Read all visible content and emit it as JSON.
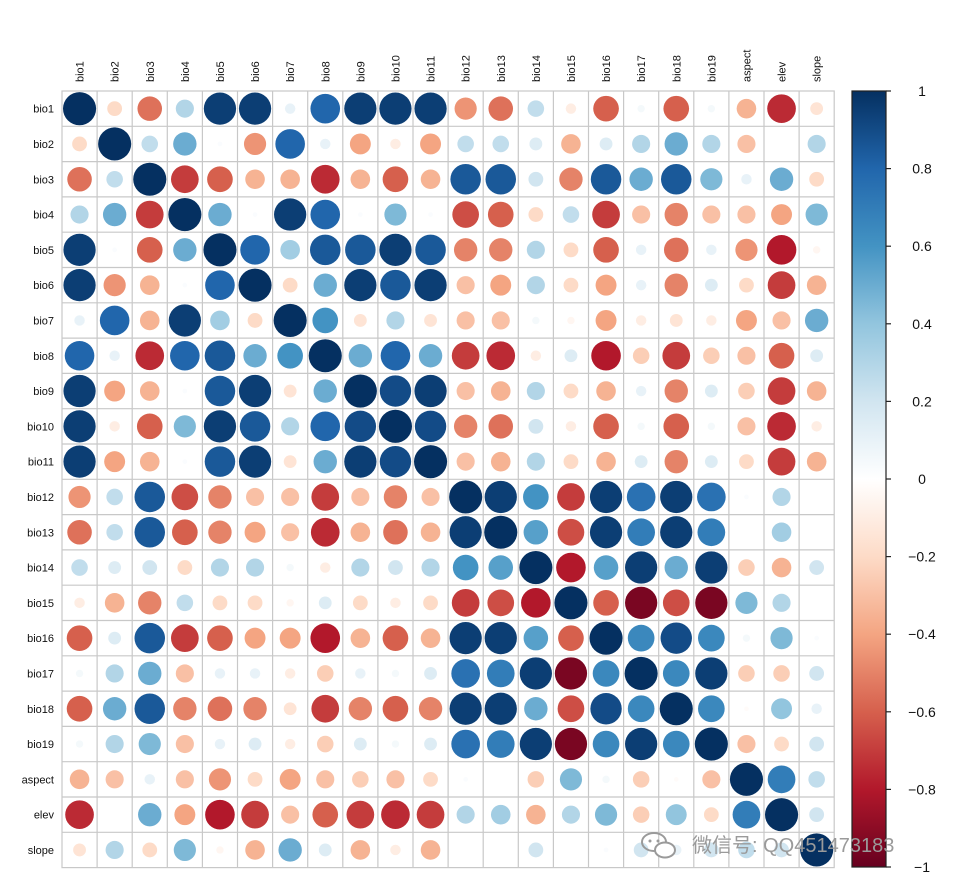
{
  "chart_data": {
    "type": "heatmap",
    "subtype": "correlation-circle-matrix",
    "title": "",
    "variables": [
      "bio1",
      "bio2",
      "bio3",
      "bio4",
      "bio5",
      "bio6",
      "bio7",
      "bio8",
      "bio9",
      "bio10",
      "bio11",
      "bio12",
      "bio13",
      "bio14",
      "bio15",
      "bio16",
      "bio17",
      "bio18",
      "bio19",
      "aspect",
      "elev",
      "slope"
    ],
    "matrix": [
      [
        1,
        -0.2,
        -0.55,
        0.3,
        0.95,
        0.95,
        0.1,
        0.8,
        0.95,
        0.95,
        0.95,
        -0.45,
        -0.55,
        0.25,
        -0.1,
        -0.6,
        0.05,
        -0.6,
        0.05,
        -0.35,
        -0.75,
        -0.15
      ],
      [
        -0.2,
        1,
        0.25,
        0.5,
        0.02,
        -0.45,
        0.8,
        0.1,
        -0.4,
        -0.1,
        -0.4,
        0.25,
        0.25,
        0.15,
        -0.35,
        0.15,
        0.3,
        0.5,
        0.3,
        -0.3,
        0,
        0.3
      ],
      [
        -0.55,
        0.25,
        1,
        -0.7,
        -0.6,
        -0.35,
        -0.35,
        -0.75,
        -0.35,
        -0.6,
        -0.35,
        0.85,
        0.85,
        0.2,
        -0.5,
        0.85,
        0.5,
        0.85,
        0.45,
        0.1,
        0.5,
        -0.2
      ],
      [
        0.3,
        0.5,
        -0.7,
        1,
        0.5,
        0.02,
        0.95,
        0.8,
        0.02,
        0.45,
        0.02,
        -0.65,
        -0.6,
        -0.2,
        0.25,
        -0.7,
        -0.3,
        -0.5,
        -0.3,
        -0.3,
        -0.4,
        0.45
      ],
      [
        0.95,
        0.02,
        -0.6,
        0.5,
        1,
        0.8,
        0.35,
        0.85,
        0.85,
        0.95,
        0.85,
        -0.5,
        -0.5,
        0.3,
        -0.2,
        -0.6,
        0.1,
        -0.55,
        0.1,
        -0.45,
        -0.8,
        -0.05
      ],
      [
        0.95,
        -0.45,
        -0.35,
        0.02,
        0.8,
        1,
        -0.2,
        0.5,
        0.95,
        0.85,
        0.95,
        -0.3,
        -0.4,
        0.3,
        -0.2,
        -0.4,
        0.1,
        -0.5,
        0.15,
        -0.2,
        -0.7,
        -0.35
      ],
      [
        0.1,
        0.8,
        -0.35,
        0.95,
        0.35,
        -0.2,
        1,
        0.6,
        -0.15,
        0.3,
        -0.15,
        -0.3,
        -0.3,
        0.05,
        -0.05,
        -0.4,
        -0.1,
        -0.15,
        -0.1,
        -0.4,
        -0.3,
        0.5
      ],
      [
        0.8,
        0.1,
        -0.75,
        0.8,
        0.85,
        0.5,
        0.6,
        1,
        0.5,
        0.8,
        0.5,
        -0.7,
        -0.75,
        -0.1,
        0.15,
        -0.8,
        -0.25,
        -0.7,
        -0.25,
        -0.3,
        -0.6,
        0.15
      ],
      [
        0.95,
        -0.4,
        -0.35,
        0.02,
        0.85,
        0.95,
        -0.15,
        0.5,
        1,
        0.9,
        0.95,
        -0.3,
        -0.35,
        0.3,
        -0.2,
        -0.35,
        0.1,
        -0.5,
        0.15,
        -0.25,
        -0.7,
        -0.35
      ],
      [
        0.95,
        -0.1,
        -0.6,
        0.45,
        0.95,
        0.85,
        0.3,
        0.8,
        0.9,
        1,
        0.9,
        -0.5,
        -0.55,
        0.2,
        -0.1,
        -0.6,
        0.05,
        -0.6,
        0.05,
        -0.3,
        -0.75,
        -0.1
      ],
      [
        0.95,
        -0.4,
        -0.35,
        0.02,
        0.85,
        0.95,
        -0.15,
        0.5,
        0.95,
        0.9,
        1,
        -0.3,
        -0.35,
        0.3,
        -0.2,
        -0.35,
        0.15,
        -0.5,
        0.15,
        -0.2,
        -0.7,
        -0.35
      ],
      [
        -0.45,
        0.25,
        0.85,
        -0.65,
        -0.5,
        -0.3,
        -0.3,
        -0.7,
        -0.3,
        -0.5,
        -0.3,
        1,
        0.95,
        0.6,
        -0.7,
        0.95,
        0.75,
        0.95,
        0.75,
        0.02,
        0.3,
        0
      ],
      [
        -0.55,
        0.25,
        0.85,
        -0.6,
        -0.5,
        -0.4,
        -0.3,
        -0.75,
        -0.35,
        -0.55,
        -0.35,
        0.95,
        1,
        0.55,
        -0.65,
        0.95,
        0.7,
        0.95,
        0.7,
        0,
        0.35,
        0
      ],
      [
        0.25,
        0.15,
        0.2,
        -0.2,
        0.3,
        0.3,
        0.05,
        -0.1,
        0.3,
        0.2,
        0.3,
        0.6,
        0.55,
        1,
        -0.8,
        0.55,
        0.95,
        0.5,
        0.95,
        -0.25,
        -0.35,
        0.2
      ],
      [
        -0.1,
        -0.35,
        -0.5,
        0.25,
        -0.2,
        -0.2,
        -0.05,
        0.15,
        -0.2,
        -0.1,
        -0.2,
        -0.7,
        -0.65,
        -0.8,
        1,
        -0.6,
        -0.95,
        -0.65,
        -0.95,
        0.45,
        0.3,
        0
      ],
      [
        -0.6,
        0.15,
        0.85,
        -0.7,
        -0.6,
        -0.4,
        -0.4,
        -0.8,
        -0.35,
        -0.6,
        -0.35,
        0.95,
        0.95,
        0.55,
        -0.6,
        1,
        0.65,
        0.9,
        0.65,
        0.05,
        0.45,
        0.02
      ],
      [
        0.05,
        0.3,
        0.5,
        -0.3,
        0.1,
        0.1,
        -0.1,
        -0.25,
        0.1,
        0.05,
        0.15,
        0.75,
        0.7,
        0.95,
        -0.95,
        0.65,
        1,
        0.65,
        0.95,
        -0.25,
        -0.25,
        0.2
      ],
      [
        -0.6,
        0.5,
        0.85,
        -0.5,
        -0.55,
        -0.5,
        -0.15,
        -0.7,
        -0.5,
        -0.6,
        -0.5,
        0.95,
        0.95,
        0.5,
        -0.65,
        0.9,
        0.65,
        1,
        0.65,
        -0.02,
        0.4,
        0.1
      ],
      [
        0.05,
        0.3,
        0.45,
        -0.3,
        0.1,
        0.15,
        -0.1,
        -0.25,
        0.15,
        0.05,
        0.15,
        0.75,
        0.7,
        0.95,
        -0.95,
        0.65,
        0.95,
        0.65,
        1,
        -0.3,
        -0.2,
        0.2
      ],
      [
        -0.35,
        -0.3,
        0.1,
        -0.3,
        -0.45,
        -0.2,
        -0.4,
        -0.3,
        -0.25,
        -0.3,
        -0.2,
        0.02,
        0,
        -0.25,
        0.45,
        0.05,
        -0.25,
        -0.02,
        -0.3,
        1,
        0.7,
        0.25
      ],
      [
        -0.75,
        0,
        0.5,
        -0.4,
        -0.8,
        -0.7,
        -0.3,
        -0.6,
        -0.7,
        -0.75,
        -0.7,
        0.3,
        0.35,
        -0.35,
        0.3,
        0.45,
        -0.25,
        0.4,
        -0.2,
        0.7,
        1,
        0.2
      ],
      [
        -0.15,
        0.3,
        -0.2,
        0.45,
        -0.05,
        -0.35,
        0.5,
        0.15,
        -0.35,
        -0.1,
        -0.35,
        0,
        0,
        0.2,
        0,
        0.02,
        0.2,
        0.1,
        0.2,
        0.25,
        0.2,
        1
      ]
    ],
    "colorbar": {
      "range": [
        -1,
        1
      ],
      "ticks": [
        "1",
        "0.8",
        "0.6",
        "0.4",
        "0.2",
        "0",
        "−0.2",
        "−0.4",
        "−0.6",
        "−0.8",
        "−1"
      ],
      "colors": [
        "#67001f",
        "#b2182b",
        "#d6604d",
        "#f4a582",
        "#fddbc7",
        "#ffffff",
        "#d1e5f0",
        "#92c5de",
        "#4393c3",
        "#2166ac",
        "#053061"
      ]
    },
    "grid": true,
    "legend_position": "right"
  },
  "watermark": {
    "text": "微信号: QQ451473183",
    "icon": "wechat-icon"
  }
}
